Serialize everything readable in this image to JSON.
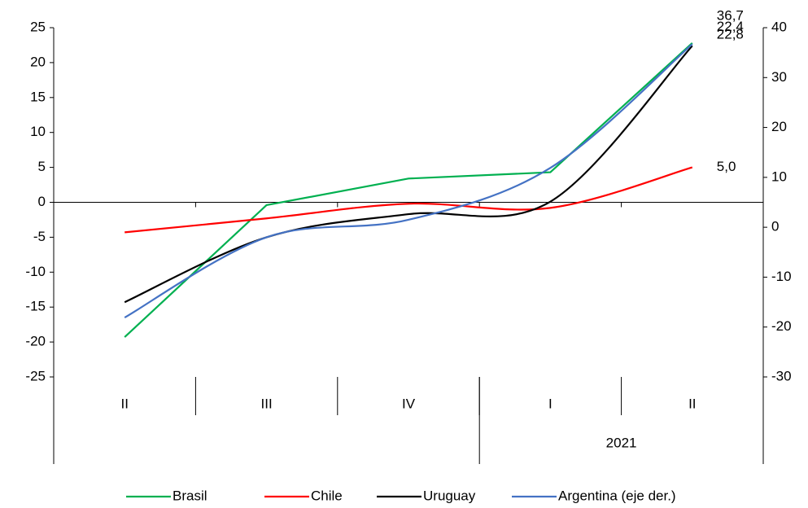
{
  "chart_data": {
    "type": "line",
    "categories": [
      "II",
      "III",
      "IV",
      "I",
      "II"
    ],
    "category_groups": [
      null,
      null,
      null,
      "2021",
      "2021"
    ],
    "series": [
      {
        "name": "Brasil",
        "color": "#00b050",
        "smooth": false,
        "values": [
          -19.3,
          -0.4,
          3.4,
          4.3,
          22.8
        ],
        "value_labels": [
          null,
          null,
          null,
          null,
          "22,8"
        ]
      },
      {
        "name": "Chile",
        "color": "#ff0000",
        "smooth": true,
        "values": [
          -4.3,
          -2.3,
          -0.2,
          -0.8,
          5.0
        ],
        "value_labels": [
          null,
          null,
          null,
          null,
          "5,0"
        ]
      },
      {
        "name": "Uruguay",
        "color": "#000000",
        "smooth": true,
        "values": [
          -14.3,
          -5.0,
          -1.7,
          0.1,
          22.4
        ],
        "value_labels": [
          null,
          null,
          null,
          null,
          "22,4"
        ]
      },
      {
        "name": "Argentina (eje der.)",
        "color": "#4472c4",
        "smooth": true,
        "axis": "y2",
        "values": [
          -18.1,
          -2.0,
          1.5,
          11.9,
          36.7
        ],
        "value_labels": [
          null,
          null,
          null,
          null,
          "36,7"
        ]
      }
    ],
    "ylim": [
      -25,
      25
    ],
    "yticks": [
      -25,
      -20,
      -15,
      -10,
      -5,
      0,
      5,
      10,
      15,
      20,
      25
    ],
    "y2lim": [
      -30,
      40
    ],
    "y2ticks": [
      -30,
      -20,
      -10,
      0,
      10,
      20,
      30,
      40
    ],
    "legend": "bottom"
  }
}
